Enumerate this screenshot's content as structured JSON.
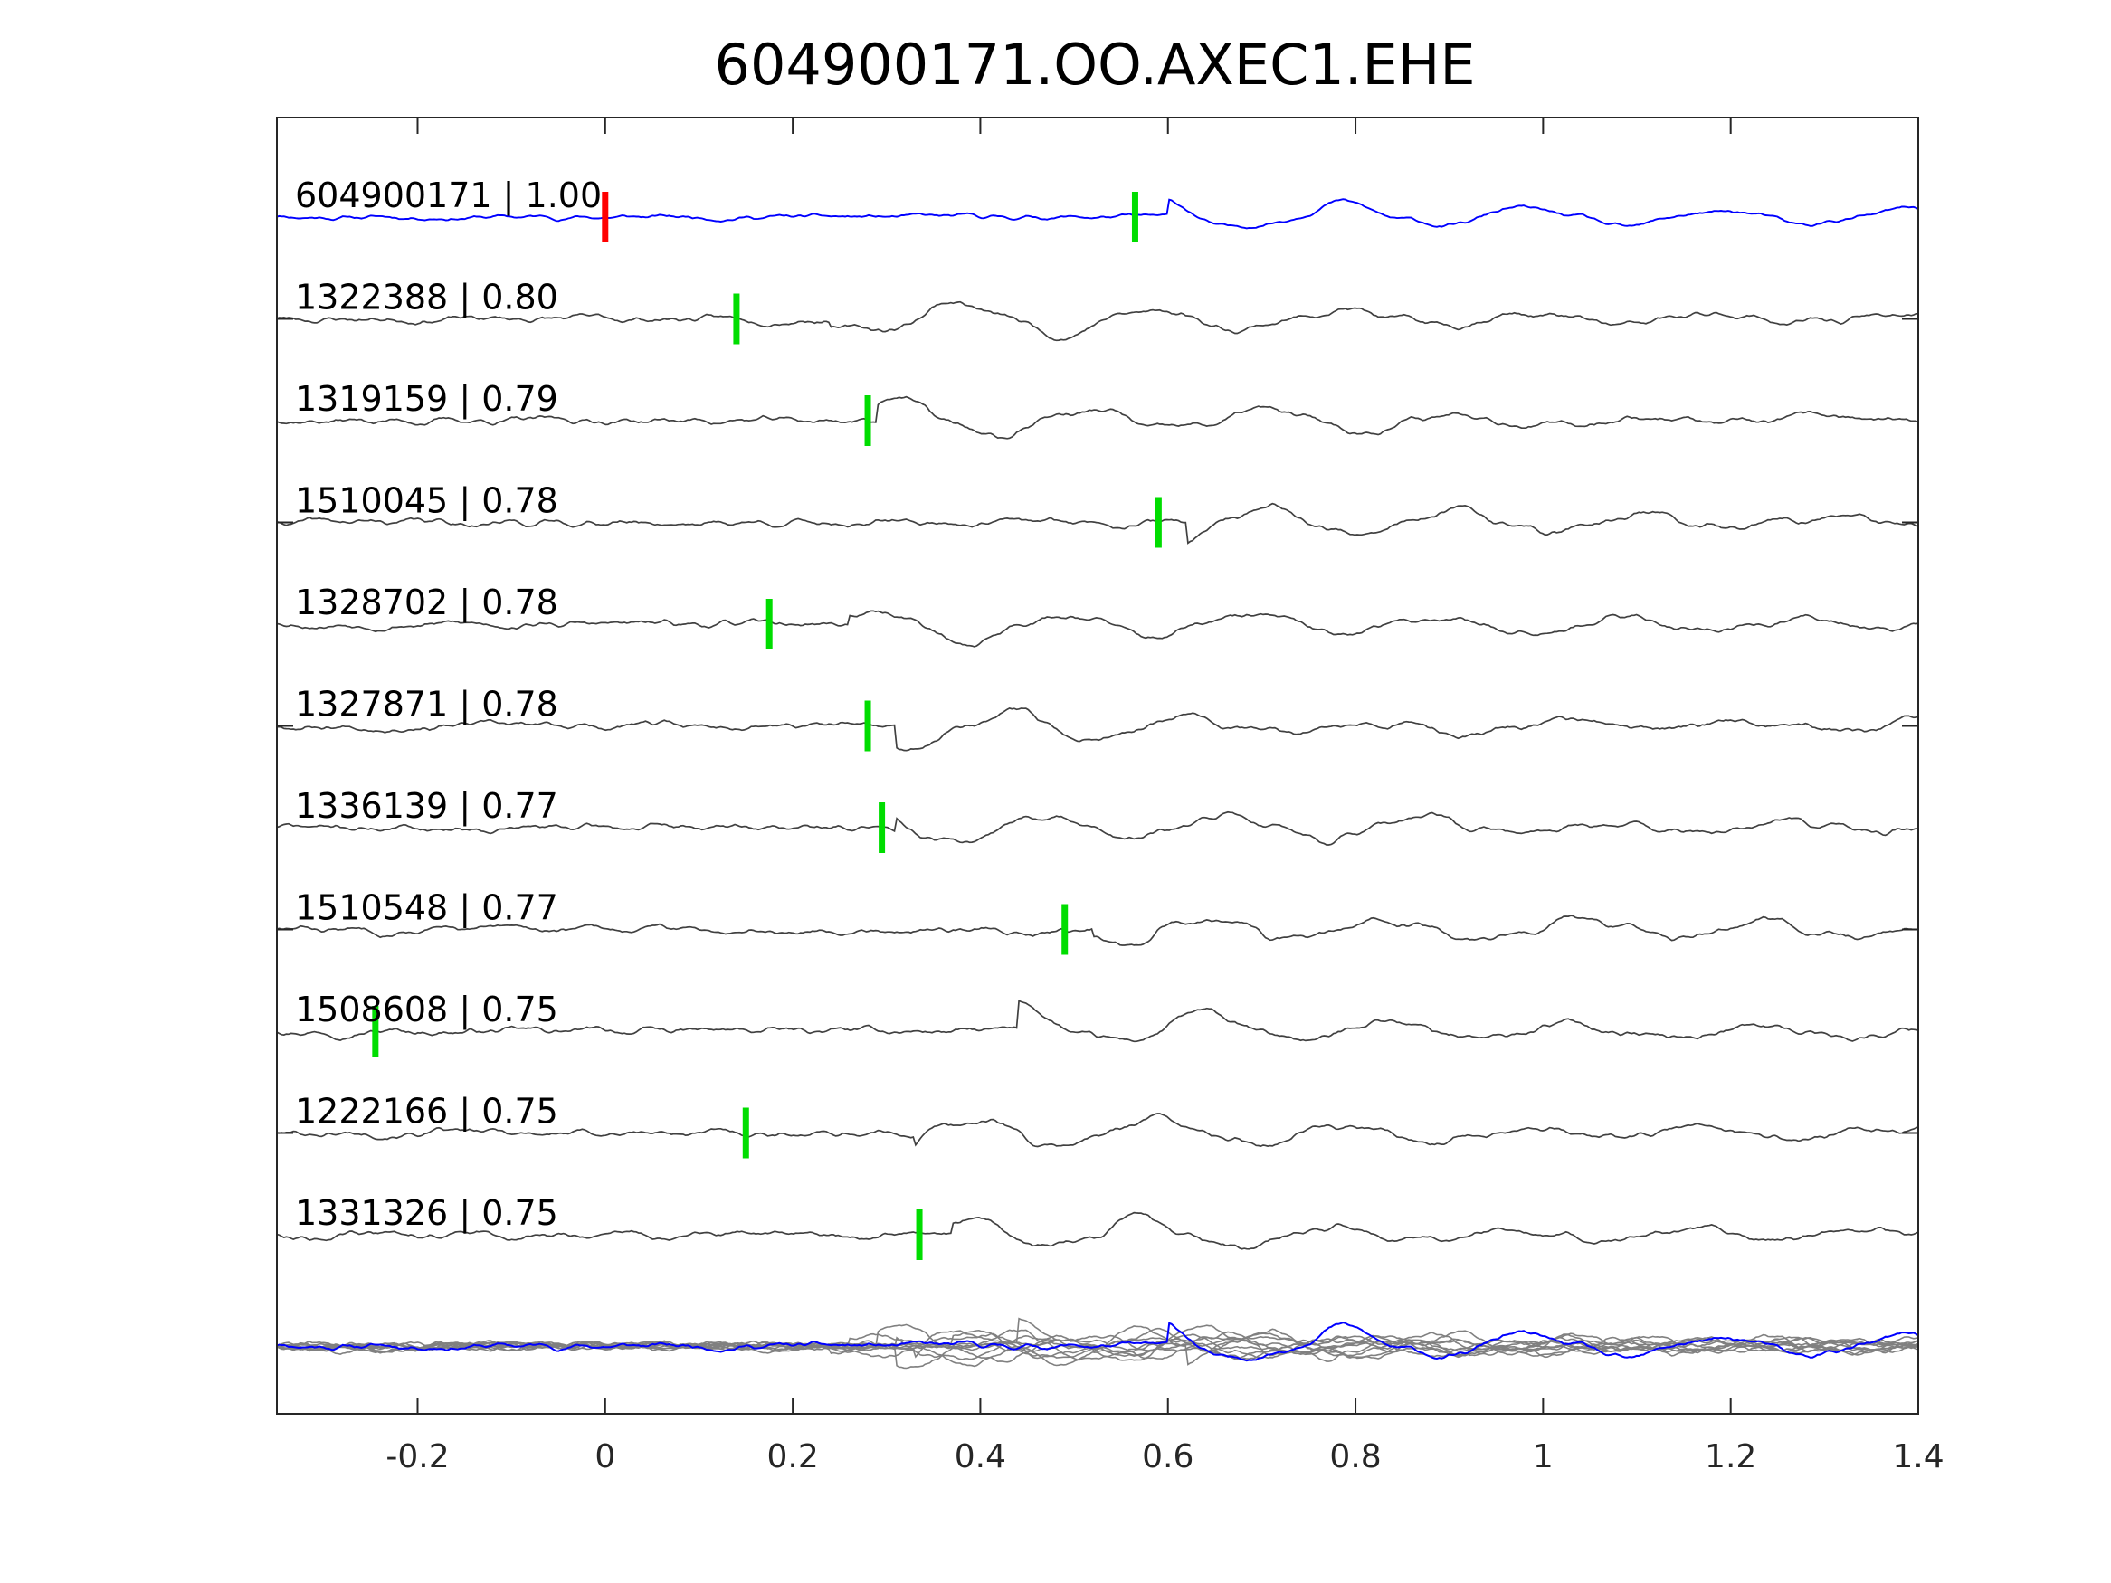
{
  "chart_data": {
    "type": "line",
    "title": "604900171.OO.AXEC1.EHE",
    "xlabel": "",
    "ylabel": "",
    "xlim": [
      -0.35,
      1.4
    ],
    "x_ticks": [
      -0.2,
      0,
      0.2,
      0.4,
      0.6,
      0.8,
      1,
      1.2,
      1.4
    ],
    "x_tick_labels": [
      "-0.2",
      "0",
      "0.2",
      "0.4",
      "0.6",
      "0.8",
      "1",
      "1.2",
      "1.4"
    ],
    "grid": false,
    "legend": "none",
    "colors": {
      "reference_trace": "#0000ff",
      "neighbor_trace": "#404040",
      "stack_trace": "#808080",
      "reference_marker": "#ff0000",
      "pick_marker": "#00dd00",
      "axes": "#262626"
    },
    "traces": [
      {
        "label": "604900171 | 1.00",
        "id": "604900171",
        "cc": 1.0,
        "reference": true,
        "origin_marker": 0.0,
        "pick": 0.565,
        "onset": 0.6,
        "seed": 11
      },
      {
        "label": "1322388 | 0.80",
        "id": "1322388",
        "cc": 0.8,
        "pick": 0.14,
        "onset": 0.24,
        "seed": 23
      },
      {
        "label": "1319159 | 0.79",
        "id": "1319159",
        "cc": 0.79,
        "pick": 0.28,
        "onset": 0.29,
        "seed": 37
      },
      {
        "label": "1510045 | 0.78",
        "id": "1510045",
        "cc": 0.78,
        "pick": 0.59,
        "onset": 0.62,
        "seed": 41
      },
      {
        "label": "1328702 | 0.78",
        "id": "1328702",
        "cc": 0.78,
        "pick": 0.175,
        "onset": 0.26,
        "seed": 53
      },
      {
        "label": "1327871 | 0.78",
        "id": "1327871",
        "cc": 0.78,
        "pick": 0.28,
        "onset": 0.31,
        "seed": 67
      },
      {
        "label": "1336139 | 0.77",
        "id": "1336139",
        "cc": 0.77,
        "pick": 0.295,
        "onset": 0.31,
        "seed": 71
      },
      {
        "label": "1510548 | 0.77",
        "id": "1510548",
        "cc": 0.77,
        "pick": 0.49,
        "onset": 0.52,
        "seed": 83
      },
      {
        "label": "1508608 | 0.75",
        "id": "1508608",
        "cc": 0.75,
        "pick": -0.245,
        "onset": 0.44,
        "seed": 97
      },
      {
        "label": "1222166 | 0.75",
        "id": "1222166",
        "cc": 0.75,
        "pick": 0.15,
        "onset": 0.33,
        "seed": 101
      },
      {
        "label": "1331326 | 0.75",
        "id": "1331326",
        "cc": 0.75,
        "pick": 0.335,
        "onset": 0.37,
        "seed": 113
      }
    ],
    "stack": {
      "description_shown": false,
      "onset": 0.27
    }
  }
}
